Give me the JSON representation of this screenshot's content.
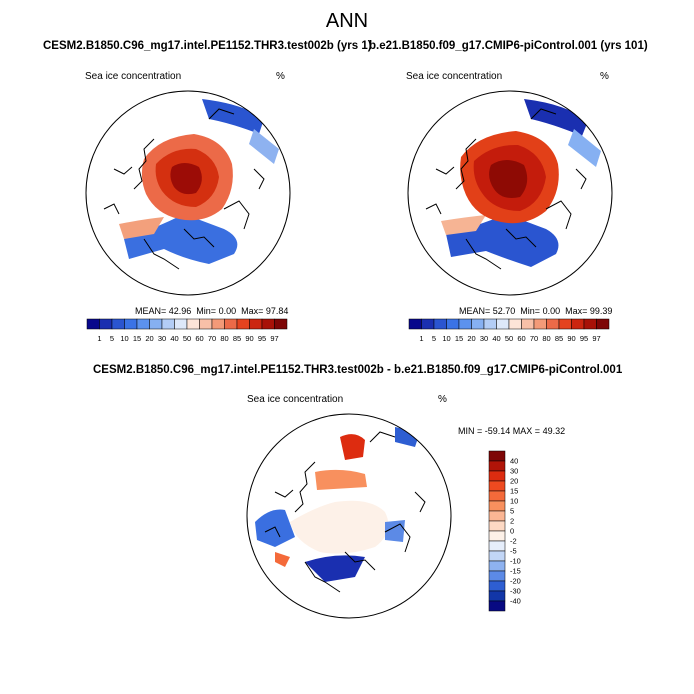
{
  "page": {
    "title": "ANN"
  },
  "chart_data": [
    {
      "type": "heatmap",
      "projection": "north polar stereographic",
      "title": "CESM2.B1850.C96_mg17.intel.PE1152.THR3.test002b (yrs 1)",
      "left_string": "Sea ice concentration",
      "right_string": "%",
      "stats": {
        "mean": "42.96",
        "min": "0.00",
        "max": "97.84"
      },
      "colorbar": {
        "orientation": "horizontal",
        "levels": [
          "1",
          "5",
          "10",
          "15",
          "20",
          "30",
          "40",
          "50",
          "60",
          "70",
          "80",
          "85",
          "90",
          "95",
          "97"
        ],
        "colors": [
          "#08088c",
          "#1a2fb0",
          "#2a55d0",
          "#3a73e6",
          "#5c92ee",
          "#86b0f2",
          "#b3cdf6",
          "#dde8fa",
          "#fde4d8",
          "#f8c0a8",
          "#f39a78",
          "#ec6a48",
          "#e4431f",
          "#cc2610",
          "#a81208",
          "#7e0606"
        ]
      }
    },
    {
      "type": "heatmap",
      "projection": "north polar stereographic",
      "title": "b.e21.B1850.f09_g17.CMIP6-piControl.001 (yrs 101)",
      "left_string": "Sea ice concentration",
      "right_string": "%",
      "stats": {
        "mean": "52.70",
        "min": "0.00",
        "max": "99.39"
      },
      "colorbar": {
        "orientation": "horizontal",
        "levels": [
          "1",
          "5",
          "10",
          "15",
          "20",
          "30",
          "40",
          "50",
          "60",
          "70",
          "80",
          "85",
          "90",
          "95",
          "97"
        ],
        "colors": [
          "#08088c",
          "#1a2fb0",
          "#2a55d0",
          "#3a73e6",
          "#5c92ee",
          "#86b0f2",
          "#b3cdf6",
          "#dde8fa",
          "#fde4d8",
          "#f8c0a8",
          "#f39a78",
          "#ec6a48",
          "#e4431f",
          "#cc2610",
          "#a81208",
          "#7e0606"
        ]
      }
    },
    {
      "type": "heatmap",
      "projection": "north polar stereographic",
      "title": "CESM2.B1850.C96_mg17.intel.PE1152.THR3.test002b - b.e21.B1850.f09_g17.CMIP6-piControl.001",
      "left_string": "Sea ice concentration",
      "right_string": "%",
      "stats": {
        "min": "-59.14",
        "max": "49.32"
      },
      "colorbar": {
        "orientation": "vertical",
        "levels": [
          "40",
          "30",
          "20",
          "15",
          "10",
          "5",
          "2",
          "0",
          "-2",
          "-5",
          "-10",
          "-15",
          "-20",
          "-30",
          "-40"
        ],
        "colors": [
          "#7e0606",
          "#b01408",
          "#dd2c10",
          "#ee4a20",
          "#f46a3a",
          "#f8905e",
          "#fbb694",
          "#fdd9c4",
          "#fdf1e8",
          "#e6eefb",
          "#c2d6f6",
          "#8eb2f0",
          "#5c8ae6",
          "#2e5ed2",
          "#1236a8",
          "#080a82"
        ]
      }
    }
  ]
}
